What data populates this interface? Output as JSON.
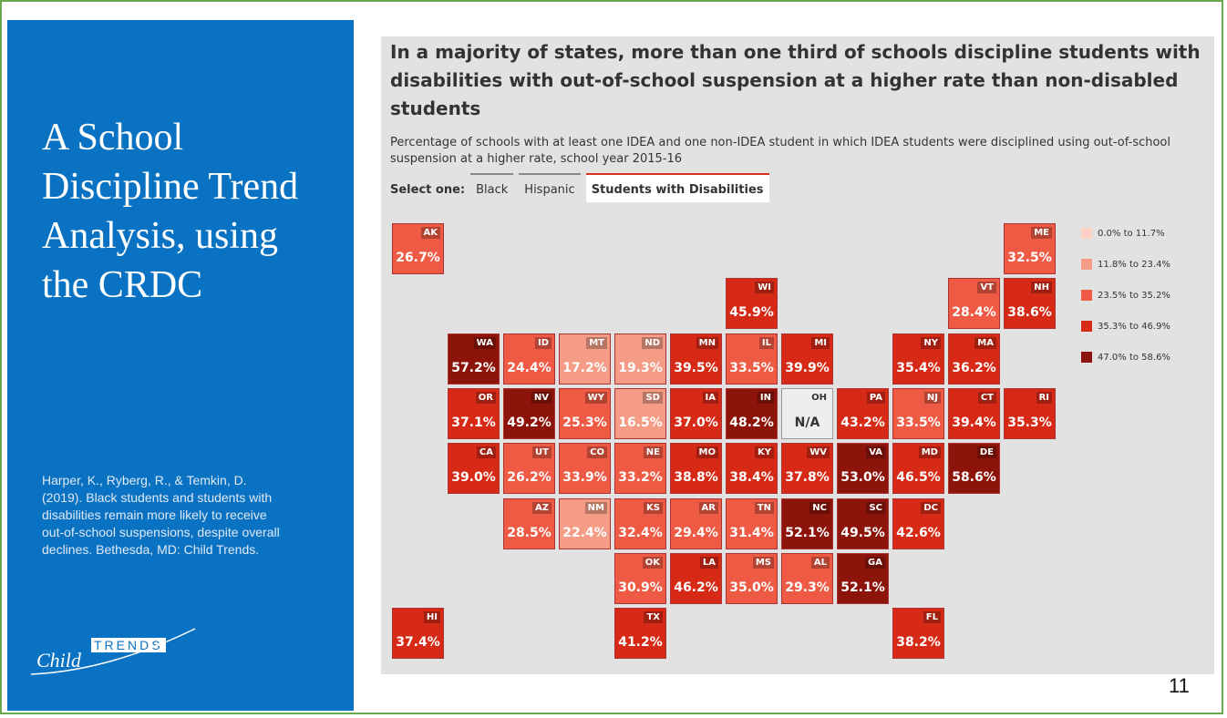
{
  "slide": {
    "title": "A School Discipline Trend Analysis, using the CRDC",
    "citation": "Harper, K., Ryberg, R., & Temkin, D. (2019). Black students and students with disabilities remain more likely to receive out-of-school suspensions, despite overall declines. Bethesda, MD: Child Trends.",
    "logo": {
      "child": "Child",
      "trends": "TRENDS"
    },
    "page_number": "11"
  },
  "graphic": {
    "headline": "In a majority of states, more than one third of schools discipline students with disabilities with out-of-school suspension at a higher rate than non-disabled students",
    "subtitle": "Percentage of schools with at least one IDEA and one non-IDEA student in which IDEA students were disciplined using out-of-school suspension at a higher rate, school year 2015-16",
    "select_label": "Select one:",
    "tabs": [
      "Black",
      "Hispanic",
      "Students with Disabilities"
    ],
    "selected_tab": 2,
    "legend": [
      {
        "label": "0.0% to 11.7%",
        "min": 0.0,
        "max": 11.7,
        "color": "#fbd4c7"
      },
      {
        "label": "11.8% to 23.4%",
        "min": 11.8,
        "max": 23.4,
        "color": "#f59c86"
      },
      {
        "label": "23.5% to 35.2%",
        "min": 23.5,
        "max": 35.2,
        "color": "#ee5a43"
      },
      {
        "label": "35.3% to 46.9%",
        "min": 35.3,
        "max": 46.9,
        "color": "#d62a16"
      },
      {
        "label": "47.0% to 58.6%",
        "min": 47.0,
        "max": 58.6,
        "color": "#8c140a"
      }
    ],
    "tiles": [
      {
        "state": "AK",
        "value": 26.7,
        "label": "26.7%"
      },
      {
        "state": "ME",
        "value": 32.5,
        "label": "32.5%"
      },
      {
        "state": "WI",
        "value": 45.9,
        "label": "45.9%"
      },
      {
        "state": "VT",
        "value": 28.4,
        "label": "28.4%"
      },
      {
        "state": "NH",
        "value": 38.6,
        "label": "38.6%"
      },
      {
        "state": "WA",
        "value": 57.2,
        "label": "57.2%"
      },
      {
        "state": "ID",
        "value": 24.4,
        "label": "24.4%"
      },
      {
        "state": "MT",
        "value": 17.2,
        "label": "17.2%"
      },
      {
        "state": "ND",
        "value": 19.3,
        "label": "19.3%"
      },
      {
        "state": "MN",
        "value": 39.5,
        "label": "39.5%"
      },
      {
        "state": "IL",
        "value": 33.5,
        "label": "33.5%"
      },
      {
        "state": "MI",
        "value": 39.9,
        "label": "39.9%"
      },
      {
        "state": "NY",
        "value": 35.4,
        "label": "35.4%"
      },
      {
        "state": "MA",
        "value": 36.2,
        "label": "36.2%"
      },
      {
        "state": "OR",
        "value": 37.1,
        "label": "37.1%"
      },
      {
        "state": "NV",
        "value": 49.2,
        "label": "49.2%"
      },
      {
        "state": "WY",
        "value": 25.3,
        "label": "25.3%"
      },
      {
        "state": "SD",
        "value": 16.5,
        "label": "16.5%"
      },
      {
        "state": "IA",
        "value": 37.0,
        "label": "37.0%"
      },
      {
        "state": "IN",
        "value": 48.2,
        "label": "48.2%"
      },
      {
        "state": "OH",
        "value": null,
        "label": "N/A"
      },
      {
        "state": "PA",
        "value": 43.2,
        "label": "43.2%"
      },
      {
        "state": "NJ",
        "value": 33.5,
        "label": "33.5%"
      },
      {
        "state": "CT",
        "value": 39.4,
        "label": "39.4%"
      },
      {
        "state": "RI",
        "value": 35.3,
        "label": "35.3%"
      },
      {
        "state": "CA",
        "value": 39.0,
        "label": "39.0%"
      },
      {
        "state": "UT",
        "value": 26.2,
        "label": "26.2%"
      },
      {
        "state": "CO",
        "value": 33.9,
        "label": "33.9%"
      },
      {
        "state": "NE",
        "value": 33.2,
        "label": "33.2%"
      },
      {
        "state": "MO",
        "value": 38.8,
        "label": "38.8%"
      },
      {
        "state": "KY",
        "value": 38.4,
        "label": "38.4%"
      },
      {
        "state": "WV",
        "value": 37.8,
        "label": "37.8%"
      },
      {
        "state": "VA",
        "value": 53.0,
        "label": "53.0%"
      },
      {
        "state": "MD",
        "value": 46.5,
        "label": "46.5%"
      },
      {
        "state": "DE",
        "value": 58.6,
        "label": "58.6%"
      },
      {
        "state": "AZ",
        "value": 28.5,
        "label": "28.5%"
      },
      {
        "state": "NM",
        "value": 22.4,
        "label": "22.4%"
      },
      {
        "state": "KS",
        "value": 32.4,
        "label": "32.4%"
      },
      {
        "state": "AR",
        "value": 29.4,
        "label": "29.4%"
      },
      {
        "state": "TN",
        "value": 31.4,
        "label": "31.4%"
      },
      {
        "state": "NC",
        "value": 52.1,
        "label": "52.1%"
      },
      {
        "state": "SC",
        "value": 49.5,
        "label": "49.5%"
      },
      {
        "state": "DC",
        "value": 42.6,
        "label": "42.6%"
      },
      {
        "state": "OK",
        "value": 30.9,
        "label": "30.9%"
      },
      {
        "state": "LA",
        "value": 46.2,
        "label": "46.2%"
      },
      {
        "state": "MS",
        "value": 35.0,
        "label": "35.0%"
      },
      {
        "state": "AL",
        "value": 29.3,
        "label": "29.3%"
      },
      {
        "state": "GA",
        "value": 52.1,
        "label": "52.1%"
      },
      {
        "state": "HI",
        "value": 37.4,
        "label": "37.4%"
      },
      {
        "state": "TX",
        "value": 41.2,
        "label": "41.2%"
      },
      {
        "state": "FL",
        "value": 38.2,
        "label": "38.2%"
      }
    ]
  }
}
